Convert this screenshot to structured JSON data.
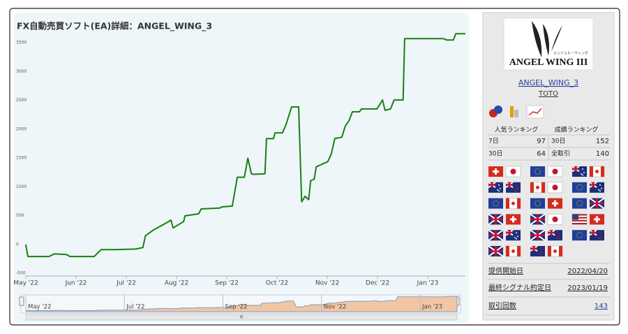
{
  "chart_data": {
    "type": "line",
    "title": "FX自動売買ソフト(EA)詳細：ANGEL_WING_3",
    "x": [
      0,
      0.04,
      0.46,
      0.57,
      0.81,
      0.88,
      1.36,
      1.5,
      1.78,
      2.19,
      2.33,
      2.38,
      2.54,
      2.75,
      2.89,
      2.93,
      3.14,
      3.17,
      3.44,
      3.49,
      3.86,
      3.9,
      4.11,
      4.21,
      4.35,
      4.42,
      4.49,
      4.53,
      4.76,
      4.79,
      4.93,
      4.96,
      5.11,
      5.18,
      5.29,
      5.43,
      5.49,
      5.56,
      5.63,
      5.67,
      5.74,
      5.78,
      5.88,
      5.94,
      6.01,
      6.08,
      6.15,
      6.29,
      6.36,
      6.43,
      6.5,
      6.64,
      6.68,
      6.99,
      7.1,
      7.15,
      7.26,
      7.33,
      7.51,
      7.54,
      8.31,
      8.38,
      8.51,
      8.56,
      8.75
    ],
    "values": [
      0,
      -210,
      -210,
      -165,
      -175,
      -210,
      -210,
      -90,
      -90,
      -80,
      -55,
      150,
      250,
      350,
      420,
      285,
      395,
      495,
      530,
      615,
      630,
      650,
      665,
      1165,
      1165,
      1495,
      1225,
      1215,
      1225,
      1835,
      1835,
      1935,
      1935,
      2080,
      2385,
      2385,
      740,
      835,
      775,
      1105,
      1130,
      1345,
      1385,
      1410,
      1435,
      1570,
      1835,
      1860,
      2055,
      2140,
      2300,
      2300,
      2350,
      2350,
      2505,
      2325,
      2350,
      2505,
      2505,
      3570,
      3570,
      3545,
      3545,
      3655,
      3655
    ],
    "color": "#18800f",
    "xlim": [
      0,
      8.75
    ],
    "xticks": [
      {
        "value": 0,
        "label": "May '22"
      },
      {
        "value": 1,
        "label": "Jun '22"
      },
      {
        "value": 2,
        "label": "Jul '22"
      },
      {
        "value": 3,
        "label": "Aug '22"
      },
      {
        "value": 4,
        "label": "Sep '22"
      },
      {
        "value": 5,
        "label": "Oct '22"
      },
      {
        "value": 6,
        "label": "Nov '22"
      },
      {
        "value": 7,
        "label": "Dec '22"
      },
      {
        "value": 8,
        "label": "Jan '23"
      }
    ],
    "navigator_xticks": [
      {
        "value": 0,
        "label": "May '22"
      },
      {
        "value": 2,
        "label": "Jul '22"
      },
      {
        "value": 4,
        "label": "Sep '22"
      },
      {
        "value": 6,
        "label": "Nov '22"
      },
      {
        "value": 8,
        "label": "Jan '23"
      }
    ],
    "ylim": [
      -500,
      3700
    ],
    "yticks": [
      -500,
      0,
      500,
      1000,
      1500,
      2000,
      2500,
      3000,
      3500
    ],
    "grid": false
  },
  "sidebar": {
    "logo": {
      "title": "ANGEL WING III",
      "subtitle": "エンジェル・ウィング"
    },
    "name": "ANGEL_WING_3",
    "author": "TOTO",
    "popularity_ranking": {
      "title": "人気ランキング",
      "rows": [
        {
          "label": "7日",
          "value": 97
        },
        {
          "label": "30日",
          "value": 64
        }
      ]
    },
    "performance_ranking": {
      "title": "成績ランキング",
      "rows": [
        {
          "label": "30日",
          "value": 152
        },
        {
          "label": "全取引",
          "value": 140
        }
      ]
    },
    "info": [
      {
        "label": "提供開始日",
        "value": "2022/04/20"
      },
      {
        "label": "最終シグナル約定日",
        "value": "2023/01/19"
      },
      {
        "label": "取引回数",
        "value": 143
      }
    ]
  }
}
